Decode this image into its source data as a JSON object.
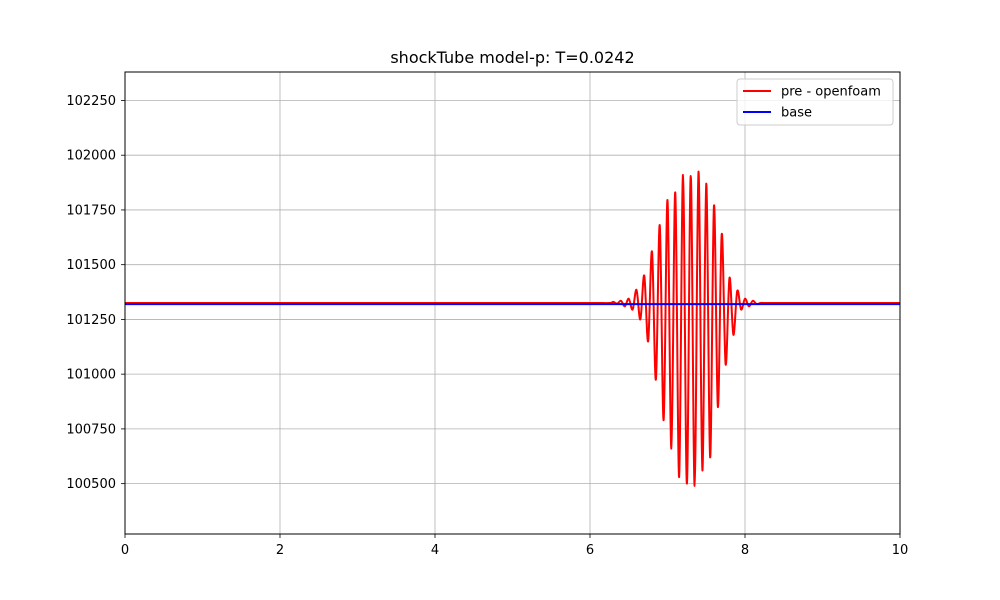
{
  "chart_data": {
    "type": "line",
    "title": "shockTube model-p: T=0.0242",
    "xlabel": "",
    "ylabel": "",
    "xlim": [
      0,
      10
    ],
    "ylim": [
      100270,
      102380
    ],
    "xticks": [
      0,
      2,
      4,
      6,
      8,
      10
    ],
    "yticks": [
      100500,
      100750,
      101000,
      101250,
      101500,
      101750,
      102000,
      102250
    ],
    "grid": true,
    "legend_position": "top-right",
    "series": [
      {
        "name": "pre - openfoam",
        "color": "#ff0000",
        "x": [
          0,
          1,
          2,
          3,
          4,
          5,
          6,
          6.25,
          6.3,
          6.35,
          6.4,
          6.45,
          6.5,
          6.55,
          6.6,
          6.65,
          6.7,
          6.75,
          6.8,
          6.85,
          6.9,
          6.95,
          7.0,
          7.05,
          7.1,
          7.15,
          7.2,
          7.25,
          7.3,
          7.35,
          7.4,
          7.45,
          7.5,
          7.55,
          7.6,
          7.65,
          7.7,
          7.75,
          7.8,
          7.85,
          7.9,
          7.95,
          8.0,
          8.05,
          8.1,
          8.15,
          8.2,
          8.25,
          8.3,
          8.35,
          8.4,
          8.45,
          8.5,
          9,
          10
        ],
        "y": [
          101325,
          101325,
          101325,
          101325,
          101325,
          101325,
          101325,
          101325,
          101330,
          101322,
          101335,
          101310,
          101345,
          101295,
          101385,
          101250,
          101450,
          101150,
          101560,
          100975,
          101680,
          100790,
          101795,
          100660,
          101830,
          100530,
          101910,
          100500,
          101905,
          100490,
          101925,
          100560,
          101870,
          100620,
          101770,
          100850,
          101640,
          101045,
          101440,
          101180,
          101380,
          101295,
          101345,
          101310,
          101335,
          101320,
          101325,
          101325,
          101325,
          101325,
          101325,
          101325,
          101325,
          101325,
          101325
        ]
      },
      {
        "name": "base",
        "color": "#0000ff",
        "x": [
          0,
          10
        ],
        "y": [
          101320,
          101320
        ]
      }
    ]
  }
}
